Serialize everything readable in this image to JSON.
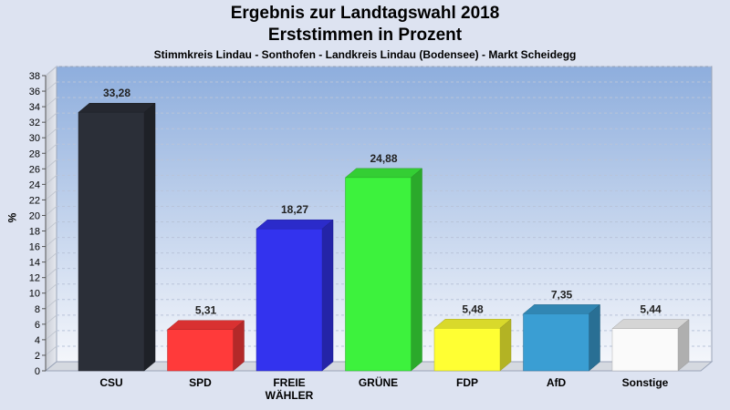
{
  "chart_data": {
    "type": "bar",
    "title_line1": "Ergebnis zur Landtagswahl 2018",
    "title_line2": "Erststimmen in Prozent",
    "subtitle": "Stimmkreis Lindau - Sonthofen - Landkreis Lindau (Bodensee) - Markt Scheidegg",
    "ylabel": "%",
    "ylim": [
      0,
      38
    ],
    "ytick_step": 2,
    "grid": true,
    "categories": [
      [
        "CSU"
      ],
      [
        "SPD"
      ],
      [
        "FREIE",
        "WÄHLER"
      ],
      [
        "GRÜNE"
      ],
      [
        "FDP"
      ],
      [
        "AfD"
      ],
      [
        "Sonstige"
      ]
    ],
    "values": [
      33.28,
      5.31,
      18.27,
      24.88,
      5.48,
      7.35,
      5.44
    ],
    "value_labels": [
      "33,28",
      "5,31",
      "18,27",
      "24,88",
      "5,48",
      "7,35",
      "5,44"
    ],
    "colors": [
      "#2b2f38",
      "#ff3a3a",
      "#3333ee",
      "#3df23d",
      "#ffff33",
      "#3a9ed3",
      "#fafafa"
    ]
  }
}
